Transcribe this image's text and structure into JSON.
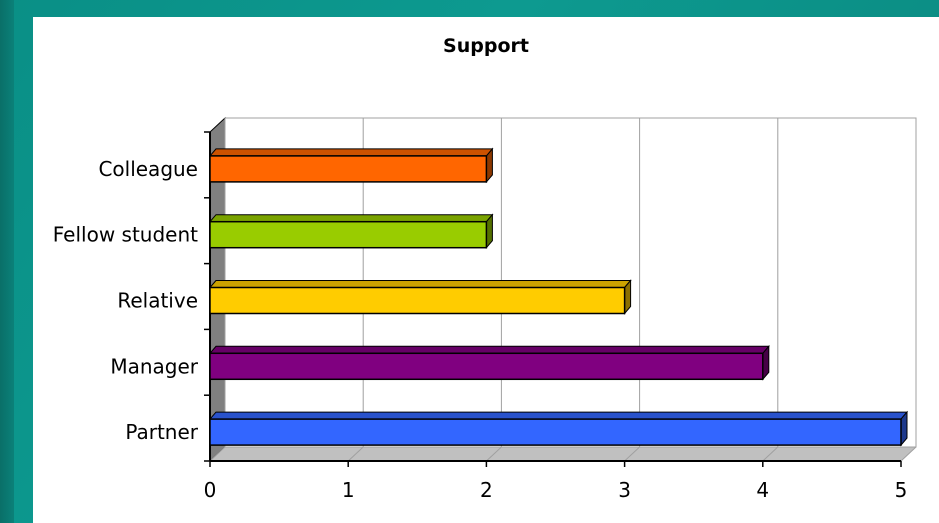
{
  "colors": {
    "background": "#0a8f86",
    "panel": "#ffffff",
    "gridline": "#a0a0a0",
    "floor": "#c0c0c0",
    "side_wall": "#808080"
  },
  "chart_data": {
    "type": "bar",
    "orientation": "horizontal",
    "style": "3d",
    "title": "Support",
    "xlabel": "",
    "ylabel": "",
    "categories": [
      "Partner",
      "Manager",
      "Relative",
      "Fellow student",
      "Colleague"
    ],
    "values": [
      5,
      4,
      3,
      2,
      2
    ],
    "bar_colors": [
      "#3366ff",
      "#800080",
      "#ffcc00",
      "#99cc00",
      "#ff6600"
    ],
    "xlim": [
      0,
      5
    ],
    "xticks": [
      "0",
      "1",
      "2",
      "3",
      "4",
      "5"
    ],
    "grid": true,
    "legend": "none"
  }
}
